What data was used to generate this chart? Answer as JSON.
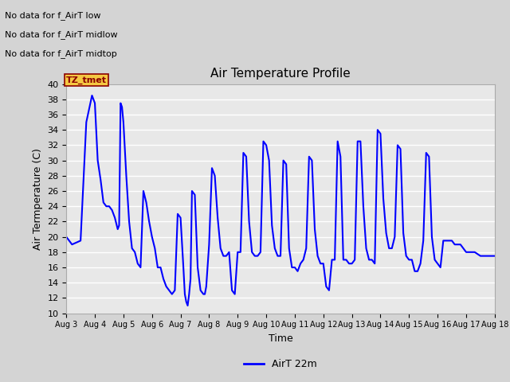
{
  "title": "Air Temperature Profile",
  "xlabel": "Time",
  "ylabel": "Air Termperature (C)",
  "ylim": [
    10,
    40
  ],
  "xlim_days": [
    3,
    18
  ],
  "xtick_labels": [
    "Aug 3",
    "Aug 4",
    "Aug 5",
    "Aug 6",
    "Aug 7",
    "Aug 8",
    "Aug 9",
    "Aug 10",
    "Aug 11",
    "Aug 12",
    "Aug 13",
    "Aug 14",
    "Aug 15",
    "Aug 16",
    "Aug 17",
    "Aug 18"
  ],
  "line_color": "#0000FF",
  "line_width": 1.5,
  "legend_label": "AirT 22m",
  "bg_color": "#e8e8e8",
  "annotations": [
    "No data for f_AirT low",
    "No data for f_AirT midlow",
    "No data for f_AirT midtop"
  ],
  "tz_label": "TZ_tmet",
  "data_points": [
    [
      3.0,
      20.0
    ],
    [
      3.1,
      19.5
    ],
    [
      3.2,
      19.0
    ],
    [
      3.5,
      19.5
    ],
    [
      3.7,
      35.0
    ],
    [
      3.9,
      38.5
    ],
    [
      4.0,
      37.5
    ],
    [
      4.1,
      30.0
    ],
    [
      4.2,
      27.5
    ],
    [
      4.3,
      24.5
    ],
    [
      4.4,
      24.0
    ],
    [
      4.5,
      24.0
    ],
    [
      4.6,
      23.5
    ],
    [
      4.7,
      22.5
    ],
    [
      4.8,
      21.0
    ],
    [
      4.85,
      21.5
    ],
    [
      4.9,
      37.5
    ],
    [
      4.95,
      37.0
    ],
    [
      5.0,
      35.0
    ],
    [
      5.1,
      28.0
    ],
    [
      5.2,
      22.0
    ],
    [
      5.3,
      18.5
    ],
    [
      5.4,
      18.0
    ],
    [
      5.5,
      16.5
    ],
    [
      5.6,
      16.0
    ],
    [
      5.7,
      26.0
    ],
    [
      5.8,
      24.5
    ],
    [
      5.9,
      22.0
    ],
    [
      6.0,
      20.0
    ],
    [
      6.1,
      18.5
    ],
    [
      6.2,
      16.0
    ],
    [
      6.3,
      16.0
    ],
    [
      6.4,
      14.5
    ],
    [
      6.5,
      13.5
    ],
    [
      6.6,
      13.0
    ],
    [
      6.7,
      12.5
    ],
    [
      6.8,
      13.0
    ],
    [
      6.9,
      23.0
    ],
    [
      7.0,
      22.5
    ],
    [
      7.1,
      16.0
    ],
    [
      7.15,
      12.5
    ],
    [
      7.2,
      11.5
    ],
    [
      7.25,
      11.0
    ],
    [
      7.3,
      12.5
    ],
    [
      7.35,
      14.5
    ],
    [
      7.4,
      26.0
    ],
    [
      7.5,
      25.5
    ],
    [
      7.6,
      16.0
    ],
    [
      7.7,
      13.0
    ],
    [
      7.8,
      12.5
    ],
    [
      7.85,
      12.5
    ],
    [
      7.9,
      13.5
    ],
    [
      8.0,
      19.0
    ],
    [
      8.1,
      29.0
    ],
    [
      8.2,
      28.0
    ],
    [
      8.3,
      22.5
    ],
    [
      8.4,
      18.5
    ],
    [
      8.5,
      17.5
    ],
    [
      8.6,
      17.5
    ],
    [
      8.7,
      18.0
    ],
    [
      8.8,
      13.0
    ],
    [
      8.9,
      12.5
    ],
    [
      9.0,
      18.0
    ],
    [
      9.1,
      18.0
    ],
    [
      9.2,
      31.0
    ],
    [
      9.3,
      30.5
    ],
    [
      9.4,
      22.0
    ],
    [
      9.5,
      18.0
    ],
    [
      9.6,
      17.5
    ],
    [
      9.7,
      17.5
    ],
    [
      9.8,
      18.0
    ],
    [
      9.9,
      32.5
    ],
    [
      10.0,
      32.0
    ],
    [
      10.1,
      30.0
    ],
    [
      10.2,
      21.5
    ],
    [
      10.3,
      18.5
    ],
    [
      10.4,
      17.5
    ],
    [
      10.5,
      17.5
    ],
    [
      10.6,
      30.0
    ],
    [
      10.7,
      29.5
    ],
    [
      10.8,
      18.5
    ],
    [
      10.9,
      16.0
    ],
    [
      11.0,
      16.0
    ],
    [
      11.1,
      15.5
    ],
    [
      11.2,
      16.5
    ],
    [
      11.3,
      17.0
    ],
    [
      11.4,
      18.5
    ],
    [
      11.5,
      30.5
    ],
    [
      11.6,
      30.0
    ],
    [
      11.7,
      21.0
    ],
    [
      11.8,
      17.5
    ],
    [
      11.9,
      16.5
    ],
    [
      12.0,
      16.5
    ],
    [
      12.1,
      13.5
    ],
    [
      12.2,
      13.0
    ],
    [
      12.3,
      17.0
    ],
    [
      12.4,
      17.0
    ],
    [
      12.5,
      32.5
    ],
    [
      12.6,
      30.5
    ],
    [
      12.7,
      17.0
    ],
    [
      12.8,
      17.0
    ],
    [
      12.9,
      16.5
    ],
    [
      13.0,
      16.5
    ],
    [
      13.1,
      17.0
    ],
    [
      13.2,
      32.5
    ],
    [
      13.3,
      32.5
    ],
    [
      13.4,
      24.0
    ],
    [
      13.5,
      18.5
    ],
    [
      13.6,
      17.0
    ],
    [
      13.7,
      17.0
    ],
    [
      13.8,
      16.5
    ],
    [
      13.9,
      34.0
    ],
    [
      14.0,
      33.5
    ],
    [
      14.1,
      25.0
    ],
    [
      14.2,
      20.5
    ],
    [
      14.3,
      18.5
    ],
    [
      14.4,
      18.5
    ],
    [
      14.5,
      20.0
    ],
    [
      14.6,
      32.0
    ],
    [
      14.7,
      31.5
    ],
    [
      14.8,
      20.5
    ],
    [
      14.9,
      17.5
    ],
    [
      15.0,
      17.0
    ],
    [
      15.1,
      17.0
    ],
    [
      15.2,
      15.5
    ],
    [
      15.3,
      15.5
    ],
    [
      15.4,
      16.5
    ],
    [
      15.5,
      19.5
    ],
    [
      15.6,
      31.0
    ],
    [
      15.7,
      30.5
    ],
    [
      15.8,
      20.0
    ],
    [
      15.9,
      17.0
    ],
    [
      16.0,
      16.5
    ],
    [
      16.1,
      16.0
    ],
    [
      16.2,
      19.5
    ],
    [
      16.5,
      19.5
    ],
    [
      16.6,
      19.0
    ],
    [
      16.8,
      19.0
    ],
    [
      17.0,
      18.0
    ],
    [
      17.3,
      18.0
    ],
    [
      17.5,
      17.5
    ],
    [
      17.8,
      17.5
    ],
    [
      18.0,
      17.5
    ]
  ]
}
